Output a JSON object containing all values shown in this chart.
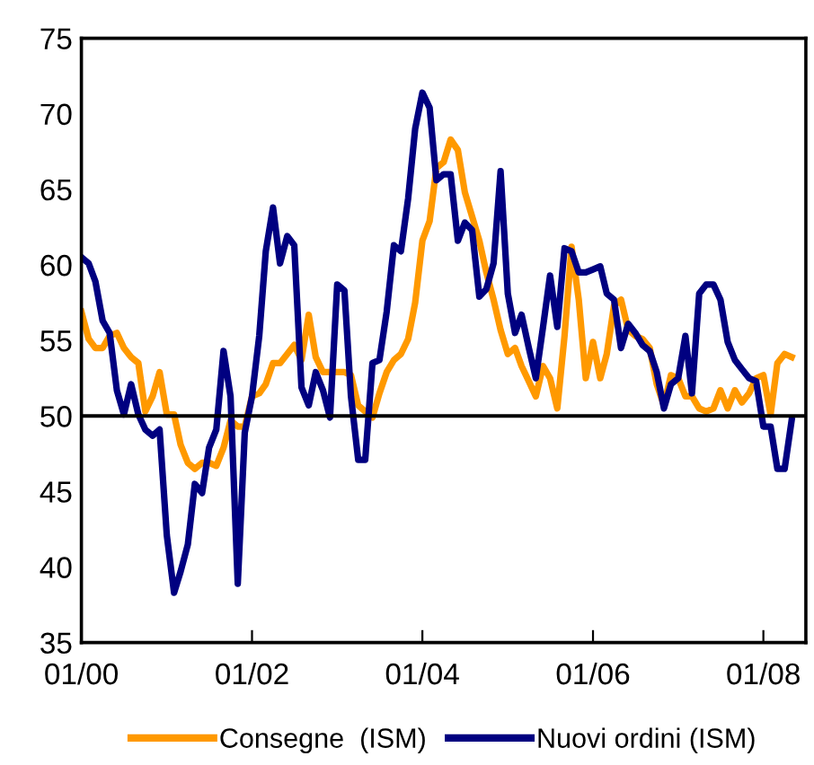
{
  "chart_data": {
    "type": "line",
    "x": [
      "2000-01",
      "2000-02",
      "2000-03",
      "2000-04",
      "2000-05",
      "2000-06",
      "2000-07",
      "2000-08",
      "2000-09",
      "2000-10",
      "2000-11",
      "2000-12",
      "2001-01",
      "2001-02",
      "2001-03",
      "2001-04",
      "2001-05",
      "2001-06",
      "2001-07",
      "2001-08",
      "2001-09",
      "2001-10",
      "2001-11",
      "2001-12",
      "2002-01",
      "2002-02",
      "2002-03",
      "2002-04",
      "2002-05",
      "2002-06",
      "2002-07",
      "2002-08",
      "2002-09",
      "2002-10",
      "2002-11",
      "2002-12",
      "2003-01",
      "2003-02",
      "2003-03",
      "2003-04",
      "2003-05",
      "2003-06",
      "2003-07",
      "2003-08",
      "2003-09",
      "2003-10",
      "2003-11",
      "2003-12",
      "2004-01",
      "2004-02",
      "2004-03",
      "2004-04",
      "2004-05",
      "2004-06",
      "2004-07",
      "2004-08",
      "2004-09",
      "2004-10",
      "2004-11",
      "2004-12",
      "2005-01",
      "2005-02",
      "2005-03",
      "2005-04",
      "2005-05",
      "2005-06",
      "2005-07",
      "2005-08",
      "2005-09",
      "2005-10",
      "2005-11",
      "2005-12",
      "2006-01",
      "2006-02",
      "2006-03",
      "2006-04",
      "2006-05",
      "2006-06",
      "2006-07",
      "2006-08",
      "2006-09",
      "2006-10",
      "2006-11",
      "2006-12",
      "2007-01",
      "2007-02",
      "2007-03",
      "2007-04",
      "2007-05",
      "2007-06",
      "2007-07",
      "2007-08",
      "2007-09",
      "2007-10",
      "2007-11",
      "2007-12",
      "2008-01",
      "2008-02",
      "2008-03",
      "2008-04",
      "2008-05"
    ],
    "series": [
      {
        "name": "Consegne  (ISM)",
        "color": "#ff9900",
        "values": [
          56.9,
          55.1,
          54.5,
          54.5,
          55.3,
          55.5,
          54.5,
          53.9,
          53.5,
          50.3,
          51.3,
          52.9,
          50.1,
          50.1,
          48.1,
          46.9,
          46.5,
          46.9,
          46.9,
          46.7,
          47.9,
          49.7,
          49.3,
          49.3,
          51.3,
          51.5,
          52.1,
          53.5,
          53.5,
          54.1,
          54.7,
          53.7,
          56.7,
          53.9,
          52.9,
          52.9,
          52.9,
          52.9,
          52.7,
          50.7,
          50.3,
          49.9,
          51.5,
          52.9,
          53.7,
          54.1,
          55.1,
          57.5,
          61.6,
          62.9,
          66.4,
          66.8,
          68.3,
          67.6,
          64.8,
          63.2,
          61.6,
          59.5,
          57.7,
          55.7,
          54.1,
          54.5,
          53.3,
          52.3,
          51.3,
          53.3,
          52.5,
          50.5,
          55.3,
          61.2,
          57.7,
          52.5,
          54.9,
          52.5,
          54.1,
          57.3,
          57.7,
          55.7,
          55.3,
          55.1,
          54.5,
          52.1,
          50.7,
          52.7,
          52.5,
          51.3,
          51.3,
          50.5,
          50.3,
          50.5,
          51.7,
          50.5,
          51.7,
          50.9,
          51.5,
          52.5,
          52.7,
          50.1,
          53.5,
          54.1,
          53.9
        ]
      },
      {
        "name": "Nuovi ordini (ISM)",
        "color": "#000080",
        "values": [
          60.5,
          60.1,
          58.9,
          56.3,
          55.5,
          51.7,
          50.1,
          52.1,
          50.1,
          49.1,
          48.7,
          49.1,
          42.1,
          38.3,
          39.7,
          41.5,
          45.5,
          44.9,
          47.9,
          49.1,
          54.3,
          51.3,
          38.9,
          48.9,
          51.3,
          55.3,
          60.9,
          63.8,
          60.1,
          61.9,
          61.3,
          51.9,
          50.7,
          52.9,
          51.7,
          49.9,
          58.7,
          58.3,
          51.3,
          47.1,
          47.1,
          53.5,
          53.7,
          56.9,
          61.3,
          60.9,
          64.4,
          69.0,
          71.4,
          70.4,
          65.6,
          66.0,
          66.0,
          61.6,
          62.8,
          62.3,
          57.9,
          58.4,
          60.1,
          66.2,
          58.1,
          55.5,
          56.7,
          54.5,
          52.5,
          55.9,
          59.3,
          55.9,
          61.1,
          60.9,
          59.5,
          59.5,
          59.7,
          59.9,
          58.1,
          57.7,
          54.5,
          56.1,
          55.5,
          54.7,
          54.3,
          52.9,
          50.5,
          52.1,
          52.5,
          55.3,
          51.5,
          58.1,
          58.7,
          58.7,
          57.7,
          54.9,
          53.7,
          53.1,
          52.5,
          52.3,
          49.3,
          49.3,
          46.5,
          46.5,
          49.7
        ]
      }
    ],
    "xlim": [
      "2000-01",
      "2008-07"
    ],
    "xticks": [
      {
        "value": "2000-01",
        "label": "01/00"
      },
      {
        "value": "2002-01",
        "label": "01/02"
      },
      {
        "value": "2004-01",
        "label": "01/04"
      },
      {
        "value": "2006-01",
        "label": "01/06"
      },
      {
        "value": "2008-01",
        "label": "01/08"
      }
    ],
    "ylim": [
      35,
      75
    ],
    "yticks": [
      35,
      40,
      45,
      50,
      55,
      60,
      65,
      70,
      75
    ],
    "ref_lines": [
      {
        "axis": "y",
        "value": 50,
        "color": "#000000"
      }
    ],
    "grid": false,
    "legend": "bottom",
    "line_style": "solid",
    "marker": "none"
  }
}
